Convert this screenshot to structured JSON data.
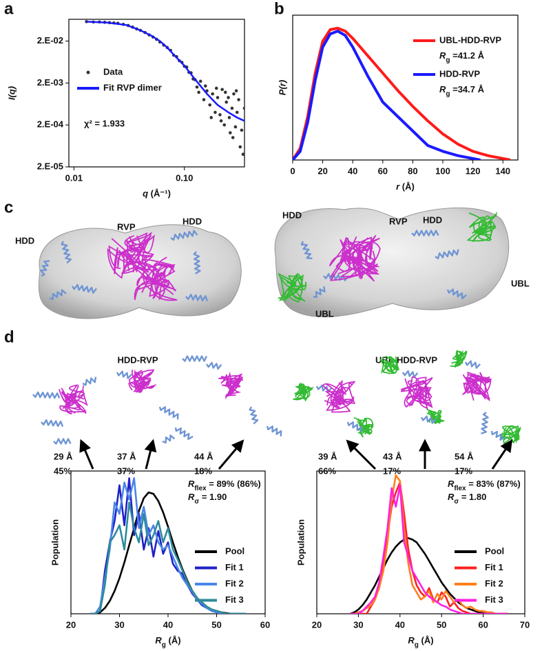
{
  "panel_labels": [
    "a",
    "b",
    "c",
    "d"
  ],
  "structures": {
    "c_left_labels": [
      "HDD",
      "RVP",
      "HDD"
    ],
    "c_right_labels": [
      "HDD",
      "RVP",
      "HDD",
      "UBL",
      "UBL"
    ],
    "d_titles": [
      "HDD-RVP",
      "UBL-HDD-RVP"
    ]
  },
  "chart_data": [
    {
      "type": "scatter",
      "xscale": "log",
      "yscale": "log",
      "xlim": [
        0.009,
        0.35
      ],
      "ylim": [
        2e-05,
        0.066
      ],
      "xticks": [
        0.01,
        {
          "value": 0.1,
          "label": "0.10"
        }
      ],
      "yticks": [
        {
          "value": 2e-05,
          "label": "2.E-05"
        },
        {
          "value": 0.0002,
          "label": "2.E-04"
        },
        {
          "value": 0.002,
          "label": "2.E-03"
        },
        {
          "value": 0.02,
          "label": "2.E-02"
        }
      ],
      "x_label": {
        "symbol": "q",
        "text": " (Å⁻¹)"
      },
      "y_label": "I(q)",
      "legend": "center left",
      "note": "χ² = 1.933",
      "series": [
        {
          "name": "Data",
          "type": "scatter",
          "color": "#333333",
          "x": [
            0.013,
            0.015,
            0.017,
            0.019,
            0.021,
            0.023,
            0.025,
            0.028,
            0.031,
            0.034,
            0.037,
            0.04,
            0.044,
            0.048,
            0.052,
            0.056,
            0.06,
            0.065,
            0.07,
            0.075,
            0.08,
            0.085,
            0.09,
            0.095,
            0.1,
            0.105,
            0.11,
            0.115,
            0.12,
            0.125,
            0.13,
            0.14,
            0.15,
            0.16,
            0.17,
            0.18,
            0.19,
            0.2,
            0.21,
            0.22,
            0.23,
            0.24,
            0.25,
            0.26,
            0.27,
            0.28,
            0.29,
            0.3,
            0.31,
            0.33,
            0.35,
            0.135,
            0.155,
            0.175,
            0.195,
            0.215,
            0.235,
            0.255,
            0.275,
            0.295,
            0.32,
            0.34
          ],
          "values": [
            0.058,
            0.057,
            0.057,
            0.056,
            0.055,
            0.054,
            0.053,
            0.05,
            0.047,
            0.043,
            0.039,
            0.036,
            0.032,
            0.028,
            0.025,
            0.022,
            0.019,
            0.016,
            0.014,
            0.012,
            0.0092,
            0.0085,
            0.0068,
            0.0062,
            0.005,
            0.0048,
            0.0036,
            0.0035,
            0.0025,
            0.0024,
            0.0016,
            0.0022,
            0.0008,
            0.0013,
            0.0006,
            0.0011,
            0.0004,
            0.0009,
            0.00035,
            0.0014,
            0.0002,
            0.0007,
            0.0009,
            0.00013,
            0.0005,
            0.0011,
            0.00018,
            0.0004,
            0.0008,
            0.00015,
            0.0005,
            0.0012,
            0.0017,
            0.0003,
            0.0015,
            0.00025,
            0.0012,
            0.0003,
            0.0001,
            0.0013,
            6e-05,
            4e-05
          ]
        },
        {
          "name": "Fit RVP dimer",
          "type": "line",
          "color": "#1a1aff",
          "x": [
            0.013,
            0.02,
            0.03,
            0.04,
            0.05,
            0.06,
            0.07,
            0.08,
            0.1,
            0.12,
            0.14,
            0.16,
            0.2,
            0.25,
            0.3,
            0.35
          ],
          "values": [
            0.058,
            0.055,
            0.048,
            0.036,
            0.027,
            0.02,
            0.014,
            0.0095,
            0.0052,
            0.0028,
            0.0017,
            0.0011,
            0.0006,
            0.0004,
            0.0003,
            0.00025
          ]
        }
      ]
    },
    {
      "type": "line",
      "xlim": [
        0,
        150
      ],
      "ylim": [
        0,
        1
      ],
      "xticks": [
        0,
        20,
        40,
        60,
        80,
        100,
        120,
        140
      ],
      "yticks": [],
      "x_label": {
        "symbol": "r",
        "text": " (Å)"
      },
      "y_label": "P(r)",
      "legend": "upper right",
      "series": [
        {
          "name": "UBL-HDD-RVP",
          "color": "#ff1a1a",
          "annotation": {
            "symbol": "R",
            "sub": "g",
            "text": " =41.2 Å"
          },
          "x": [
            0,
            5,
            10,
            15,
            20,
            25,
            30,
            35,
            40,
            50,
            60,
            70,
            80,
            90,
            100,
            110,
            120,
            130,
            140,
            145
          ],
          "values": [
            0,
            0.08,
            0.3,
            0.6,
            0.82,
            0.9,
            0.91,
            0.89,
            0.84,
            0.72,
            0.6,
            0.48,
            0.37,
            0.27,
            0.18,
            0.11,
            0.06,
            0.03,
            0.01,
            0
          ]
        },
        {
          "name": "HDD-RVP",
          "color": "#1a1aff",
          "annotation": {
            "symbol": "R",
            "sub": "g",
            "text": " =34.7 Å"
          },
          "x": [
            0,
            5,
            10,
            15,
            20,
            25,
            30,
            35,
            40,
            50,
            60,
            70,
            80,
            90,
            100,
            110,
            120,
            125
          ],
          "values": [
            0,
            0.06,
            0.26,
            0.55,
            0.78,
            0.87,
            0.89,
            0.86,
            0.78,
            0.58,
            0.4,
            0.3,
            0.2,
            0.1,
            0.06,
            0.03,
            0.01,
            0
          ]
        }
      ]
    },
    {
      "type": "line",
      "xlim": [
        20,
        60
      ],
      "ylim": [
        0,
        1
      ],
      "xticks": [
        20,
        30,
        40,
        50,
        60
      ],
      "yticks": [],
      "x_label": {
        "symbol": "R",
        "sub": "g",
        "text": " (Å)"
      },
      "y_label": "Population",
      "legend": "lower right",
      "annotations": [
        {
          "symbol": "R",
          "sub": "flex",
          "text": " = 89% (86%)"
        },
        {
          "symbol": "R",
          "sub": "σ",
          "text": " = 1.90"
        }
      ],
      "arrows": [
        {
          "rg": "29 Å",
          "percent": "45%"
        },
        {
          "rg": "37 Å",
          "percent": "37%"
        },
        {
          "rg": "44 Å",
          "percent": "18%"
        }
      ],
      "x": [
        24,
        25,
        26,
        27,
        28,
        29,
        30,
        31,
        32,
        33,
        34,
        35,
        36,
        37,
        38,
        39,
        40,
        41,
        42,
        43,
        44,
        45,
        46,
        47,
        48,
        49,
        50,
        51,
        52,
        53,
        54,
        55,
        56
      ],
      "series": [
        {
          "name": "Pool",
          "color": "#000000",
          "values": [
            0,
            0,
            0.01,
            0.04,
            0.09,
            0.16,
            0.25,
            0.36,
            0.48,
            0.6,
            0.72,
            0.81,
            0.85,
            0.84,
            0.79,
            0.71,
            0.61,
            0.5,
            0.4,
            0.31,
            0.23,
            0.16,
            0.11,
            0.07,
            0.045,
            0.03,
            0.02,
            0.01,
            0.005,
            0,
            0,
            0,
            0
          ]
        },
        {
          "name": "Fit 1",
          "color": "#2020c8",
          "values": [
            0,
            0,
            0.02,
            0.3,
            0.5,
            0.65,
            0.9,
            0.62,
            0.95,
            0.55,
            0.7,
            0.45,
            0.6,
            0.4,
            0.58,
            0.42,
            0.5,
            0.35,
            0.3,
            0.28,
            0.2,
            0.14,
            0.1,
            0.06,
            0.04,
            0.02,
            0.01,
            0,
            0,
            0,
            0,
            0,
            0
          ]
        },
        {
          "name": "Fit 2",
          "color": "#4a86e8",
          "values": [
            0,
            0,
            0.05,
            0.25,
            0.45,
            0.78,
            0.7,
            0.92,
            0.8,
            0.95,
            0.6,
            0.75,
            0.55,
            0.62,
            0.5,
            0.45,
            0.48,
            0.4,
            0.32,
            0.25,
            0.2,
            0.15,
            0.1,
            0.07,
            0.04,
            0.02,
            0.01,
            0,
            0,
            0,
            0,
            0,
            0
          ]
        },
        {
          "name": "Fit 3",
          "color": "#2e8b9a",
          "values": [
            0,
            0,
            0.02,
            0.2,
            0.5,
            0.55,
            0.62,
            0.45,
            0.78,
            0.6,
            0.5,
            0.7,
            0.48,
            0.55,
            0.65,
            0.5,
            0.6,
            0.45,
            0.38,
            0.3,
            0.22,
            0.16,
            0.11,
            0.08,
            0.05,
            0.03,
            0.02,
            0.01,
            0,
            0,
            0,
            0,
            0
          ]
        }
      ]
    },
    {
      "type": "line",
      "xlim": [
        20,
        70
      ],
      "ylim": [
        0,
        1
      ],
      "xticks": [
        20,
        30,
        40,
        50,
        60,
        70
      ],
      "yticks": [],
      "x_label": {
        "symbol": "R",
        "sub": "g",
        "text": " (Å)"
      },
      "y_label": "Population",
      "legend": "lower right",
      "annotations": [
        {
          "symbol": "R",
          "sub": "flex",
          "text": " = 83% (87%)"
        },
        {
          "symbol": "R",
          "sub": "σ",
          "text": " = 1.80"
        }
      ],
      "arrows": [
        {
          "rg": "39 Å",
          "percent": "66%"
        },
        {
          "rg": "43 Å",
          "percent": "17%"
        },
        {
          "rg": "54 Å",
          "percent": "17%"
        }
      ],
      "x": [
        28,
        29,
        30,
        31,
        32,
        33,
        34,
        35,
        36,
        37,
        38,
        39,
        40,
        41,
        42,
        43,
        44,
        45,
        46,
        47,
        48,
        49,
        50,
        51,
        52,
        53,
        54,
        55,
        56,
        57,
        58,
        59,
        60,
        61,
        62,
        63,
        64,
        65,
        66
      ],
      "series": [
        {
          "name": "Pool",
          "color": "#000000",
          "values": [
            0,
            0.01,
            0.03,
            0.06,
            0.1,
            0.15,
            0.2,
            0.26,
            0.32,
            0.38,
            0.43,
            0.47,
            0.5,
            0.52,
            0.53,
            0.52,
            0.5,
            0.46,
            0.42,
            0.37,
            0.32,
            0.27,
            0.22,
            0.18,
            0.14,
            0.11,
            0.08,
            0.06,
            0.04,
            0.03,
            0.02,
            0.01,
            0.005,
            0,
            0,
            0,
            0,
            0,
            0
          ]
        },
        {
          "name": "Fit 1",
          "color": "#ff2020",
          "values": [
            0,
            0,
            0,
            0,
            0,
            0.05,
            0.1,
            0.2,
            0.35,
            0.55,
            0.75,
            0.85,
            0.92,
            0.7,
            0.45,
            0.3,
            0.2,
            0.15,
            0.12,
            0.18,
            0.1,
            0.08,
            0.15,
            0.12,
            0.05,
            0.08,
            0.04,
            0.02,
            0.01,
            0,
            0,
            0,
            0,
            0,
            0,
            0,
            0,
            0,
            0
          ]
        },
        {
          "name": "Fit 2",
          "color": "#ff7f1a",
          "values": [
            0,
            0,
            0.01,
            0.02,
            0.04,
            0.06,
            0.1,
            0.18,
            0.3,
            0.5,
            0.8,
            0.97,
            0.93,
            0.6,
            0.35,
            0.2,
            0.15,
            0.1,
            0.12,
            0.16,
            0.08,
            0.14,
            0.1,
            0.16,
            0.12,
            0.08,
            0.1,
            0.06,
            0.04,
            0.05,
            0.03,
            0.02,
            0.02,
            0.01,
            0.01,
            0,
            0,
            0,
            0
          ]
        },
        {
          "name": "Fit 3",
          "color": "#ff20e0",
          "values": [
            0,
            0,
            0,
            0.02,
            0.05,
            0.08,
            0.12,
            0.22,
            0.4,
            0.6,
            0.88,
            0.75,
            0.9,
            0.5,
            0.4,
            0.3,
            0.25,
            0.2,
            0.15,
            0.12,
            0.1,
            0.08,
            0.06,
            0.05,
            0.03,
            0.02,
            0.01,
            0,
            0,
            0,
            0,
            0,
            0,
            0,
            0,
            0,
            0,
            0,
            0
          ]
        }
      ]
    }
  ]
}
